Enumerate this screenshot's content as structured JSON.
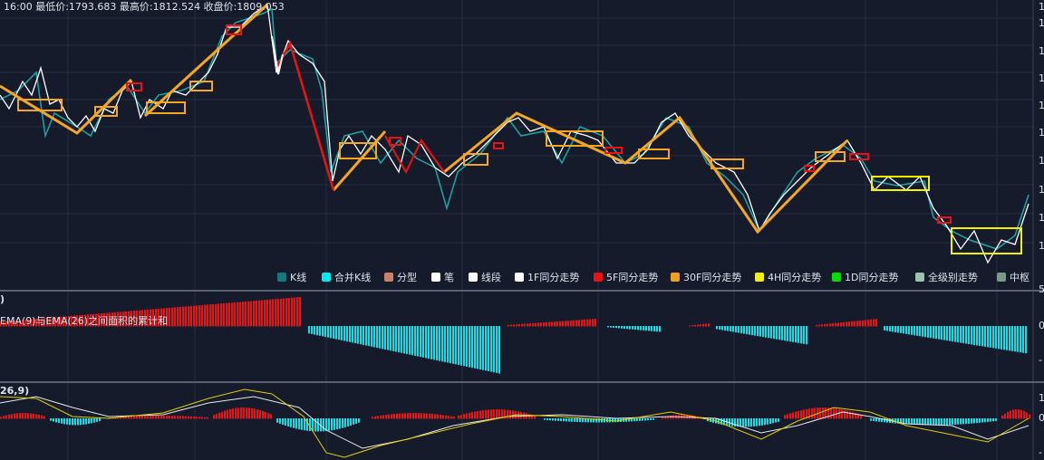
{
  "header": {
    "info": "16:00 最低价:1793.683 最高价:1812.524 收盘价:1809.053"
  },
  "legend": [
    {
      "label": "K线",
      "color": "#127a7a"
    },
    {
      "label": "合并K线",
      "color": "#00e8f0"
    },
    {
      "label": "分型",
      "color": "#c9806a"
    },
    {
      "label": "笔",
      "color": "#ffffff"
    },
    {
      "label": "线段",
      "color": "#ffffff"
    },
    {
      "label": "1F同分走势",
      "color": "#ffffff"
    },
    {
      "label": "5F同分走势",
      "color": "#ee1111"
    },
    {
      "label": "30F同分走势",
      "color": "#f0a020"
    },
    {
      "label": "4H同分走势",
      "color": "#f5f000"
    },
    {
      "label": "1D同分走势",
      "color": "#00e000"
    },
    {
      "label": "全级别走势",
      "color": "#9cc4ac"
    },
    {
      "label": "中枢",
      "color": "#7a9a86"
    }
  ],
  "panels": {
    "indicator1_title": ")",
    "indicator1_desc": "EMA(9)与EMA(26)之间面积的累计和",
    "indicator2_title": "26,9)"
  },
  "right_axis": {
    "main": [
      "1",
      "1",
      "1",
      "1",
      "1",
      "1",
      "1",
      "1",
      "1",
      "1",
      "5"
    ],
    "indicator1": [
      "0",
      "-"
    ],
    "indicator2": [
      "1",
      "0",
      "-"
    ]
  }
}
